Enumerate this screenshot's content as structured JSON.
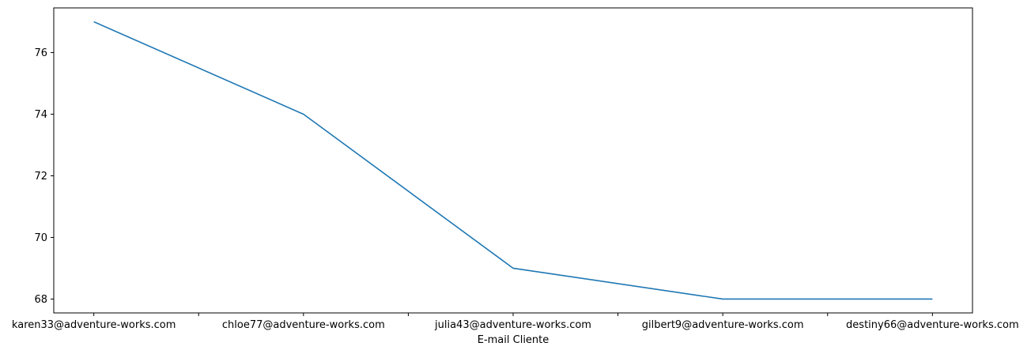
{
  "chart_data": {
    "type": "line",
    "title": "",
    "xlabel": "E-mail Cliente",
    "ylabel": "",
    "categories": [
      "karen33@adventure-works.com",
      "chloe77@adventure-works.com",
      "julia43@adventure-works.com",
      "gilbert9@adventure-works.com",
      "destiny66@adventure-works.com"
    ],
    "series": [
      {
        "values": [
          77,
          74,
          69,
          68,
          68
        ],
        "color": "#1f77b4"
      }
    ],
    "ylim": [
      67.55,
      77.45
    ],
    "yticks": [
      68,
      70,
      72,
      74,
      76
    ],
    "ytick_labels": [
      "68",
      "70",
      "72",
      "74",
      "76"
    ],
    "grid": false,
    "legend": "none"
  }
}
